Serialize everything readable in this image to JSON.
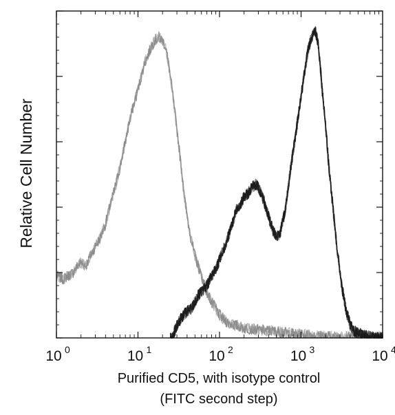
{
  "chart_data": {
    "type": "line",
    "title": "",
    "xlabel": "Purified CD5, with isotype control",
    "xlabel_line2": "(FITC second step)",
    "ylabel": "Relative Cell Number",
    "x_scale": "log",
    "xlim": [
      1,
      10000
    ],
    "ylim": [
      0,
      100
    ],
    "x_tick_labels": [
      {
        "value": 1,
        "base": "10",
        "exp": "0"
      },
      {
        "value": 10,
        "base": "10",
        "exp": "1"
      },
      {
        "value": 100,
        "base": "10",
        "exp": "2"
      },
      {
        "value": 1000,
        "base": "10",
        "exp": "3"
      },
      {
        "value": 10000,
        "base": "10",
        "exp": "4"
      }
    ],
    "y_tick_labels": [],
    "grid": false,
    "legend": "none",
    "series": [
      {
        "color": "#8a8a8a",
        "points": [
          [
            1.0,
            19
          ],
          [
            1.2,
            18
          ],
          [
            1.4,
            19
          ],
          [
            1.6,
            20
          ],
          [
            1.8,
            22
          ],
          [
            2.0,
            23
          ],
          [
            2.3,
            22
          ],
          [
            2.6,
            25
          ],
          [
            3.0,
            28
          ],
          [
            3.5,
            31
          ],
          [
            4.0,
            35
          ],
          [
            4.5,
            40
          ],
          [
            5.0,
            44
          ],
          [
            6.0,
            52
          ],
          [
            7.0,
            60
          ],
          [
            8.0,
            67
          ],
          [
            9.0,
            72
          ],
          [
            10.0,
            76
          ],
          [
            11.0,
            80
          ],
          [
            12.0,
            84
          ],
          [
            14.0,
            88
          ],
          [
            16.0,
            91
          ],
          [
            18.0,
            92
          ],
          [
            20.0,
            91
          ],
          [
            22.0,
            89
          ],
          [
            25.0,
            80
          ],
          [
            28.0,
            70
          ],
          [
            32.0,
            58
          ],
          [
            36.0,
            46
          ],
          [
            40.0,
            37
          ],
          [
            45.0,
            30
          ],
          [
            50.0,
            25
          ],
          [
            60.0,
            19
          ],
          [
            70.0,
            14
          ],
          [
            80.0,
            11
          ],
          [
            90.0,
            9
          ],
          [
            100.0,
            7
          ],
          [
            120.0,
            5
          ],
          [
            150.0,
            4
          ],
          [
            200.0,
            3
          ],
          [
            300.0,
            2.5
          ],
          [
            500.0,
            2
          ],
          [
            700.0,
            1.5
          ],
          [
            1000.0,
            1
          ],
          [
            2000.0,
            0.5
          ],
          [
            5000.0,
            0.2
          ],
          [
            10000.0,
            0
          ]
        ]
      },
      {
        "color": "#1a1a1a",
        "points": [
          [
            25.0,
            0
          ],
          [
            28.0,
            2
          ],
          [
            32.0,
            5
          ],
          [
            36.0,
            7
          ],
          [
            40.0,
            8
          ],
          [
            45.0,
            9
          ],
          [
            50.0,
            11
          ],
          [
            55.0,
            13
          ],
          [
            60.0,
            14
          ],
          [
            70.0,
            16
          ],
          [
            80.0,
            19
          ],
          [
            90.0,
            21
          ],
          [
            100.0,
            24
          ],
          [
            120.0,
            29
          ],
          [
            140.0,
            34
          ],
          [
            160.0,
            39
          ],
          [
            180.0,
            41
          ],
          [
            200.0,
            43
          ],
          [
            220.0,
            44
          ],
          [
            250.0,
            46
          ],
          [
            280.0,
            47
          ],
          [
            300.0,
            46
          ],
          [
            350.0,
            42
          ],
          [
            400.0,
            37
          ],
          [
            450.0,
            33
          ],
          [
            500.0,
            31
          ],
          [
            550.0,
            32
          ],
          [
            600.0,
            36
          ],
          [
            650.0,
            40
          ],
          [
            700.0,
            47
          ],
          [
            800.0,
            57
          ],
          [
            900.0,
            66
          ],
          [
            1000.0,
            74
          ],
          [
            1100.0,
            81
          ],
          [
            1200.0,
            87
          ],
          [
            1300.0,
            91
          ],
          [
            1400.0,
            93
          ],
          [
            1500.0,
            94
          ],
          [
            1600.0,
            91
          ],
          [
            1700.0,
            85
          ],
          [
            1800.0,
            77
          ],
          [
            2000.0,
            65
          ],
          [
            2200.0,
            52
          ],
          [
            2500.0,
            38
          ],
          [
            2800.0,
            26
          ],
          [
            3200.0,
            15
          ],
          [
            3600.0,
            8
          ],
          [
            4000.0,
            4
          ],
          [
            4500.0,
            2
          ],
          [
            5500.0,
            1
          ],
          [
            7000.0,
            0.3
          ],
          [
            10000.0,
            0
          ]
        ]
      }
    ]
  }
}
